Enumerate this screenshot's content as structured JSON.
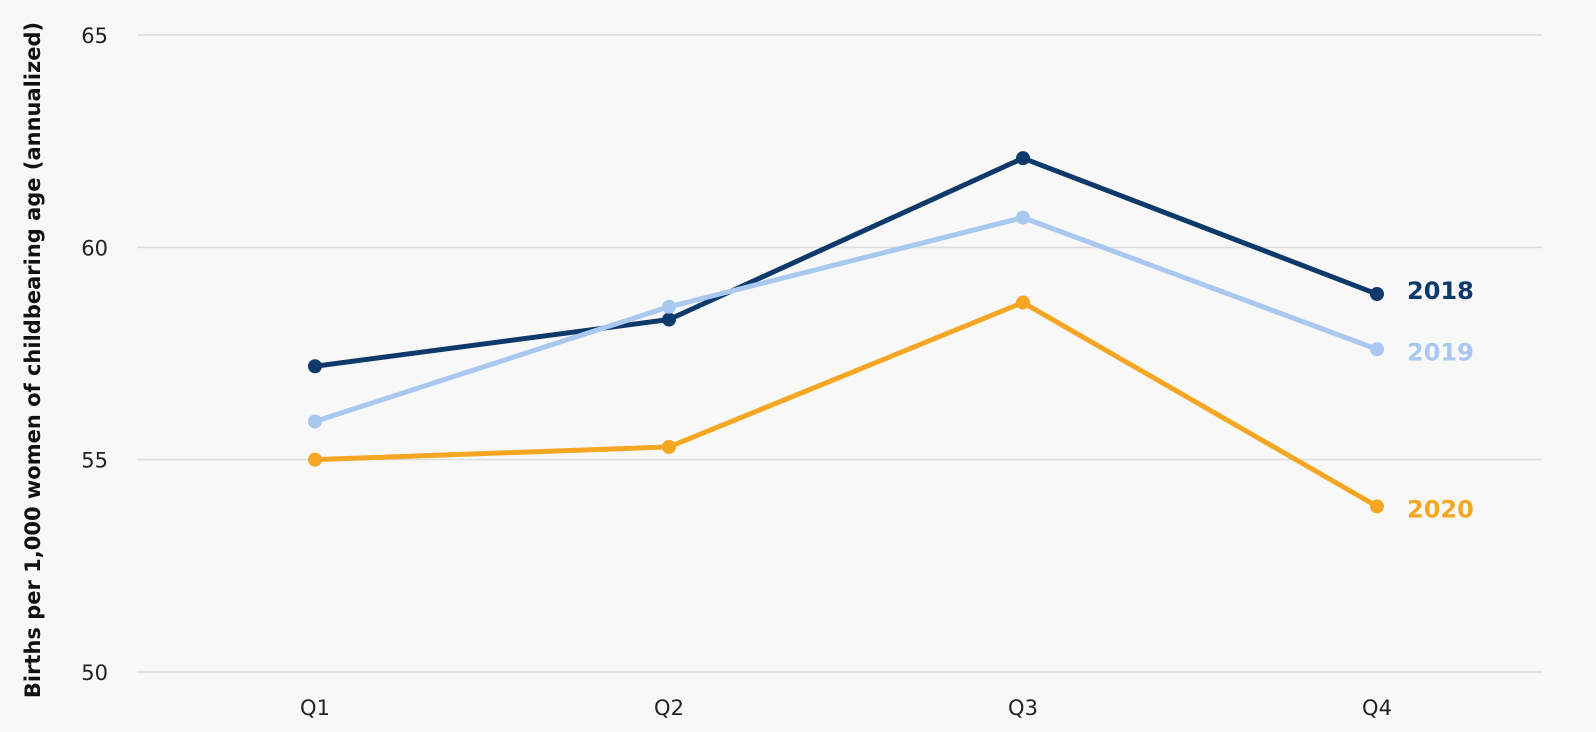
{
  "chart_data": {
    "type": "line",
    "title": "",
    "xlabel": "",
    "ylabel": "Births per 1,000 women of childbearing age (annualized)",
    "categories": [
      "Q1",
      "Q2",
      "Q3",
      "Q4"
    ],
    "ylim": [
      50,
      65
    ],
    "yticks": [
      50,
      55,
      60,
      65
    ],
    "grid": true,
    "legend": "end-of-line labels",
    "series": [
      {
        "name": "2018",
        "color": "#0e3a6b",
        "values": [
          57.2,
          58.3,
          62.1,
          58.9
        ]
      },
      {
        "name": "2019",
        "color": "#a8c8f0",
        "values": [
          55.9,
          58.6,
          60.7,
          57.6
        ]
      },
      {
        "name": "2020",
        "color": "#f5a623",
        "values": [
          55.0,
          55.3,
          58.7,
          53.9
        ]
      }
    ]
  }
}
